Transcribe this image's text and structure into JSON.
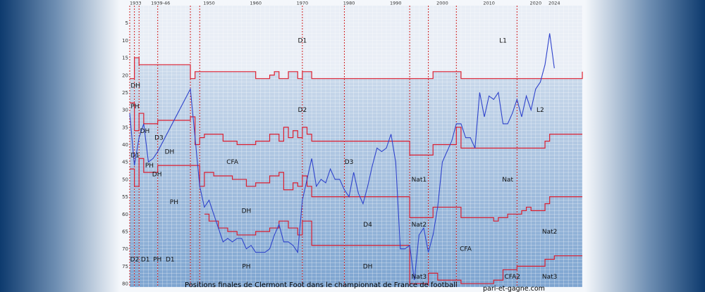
{
  "chart_data": {
    "type": "line",
    "title": "Positions finales de Clermont Foot dans le championnat de France de football",
    "source": "pari-et-gagne.com",
    "x_ticks": [
      "1933",
      "1939-46",
      "1950",
      "1960",
      "1970",
      "1980",
      "1990",
      "2000",
      "2010",
      "2020",
      "2024"
    ],
    "y_ticks": [
      5,
      10,
      15,
      20,
      25,
      30,
      35,
      40,
      45,
      50,
      55,
      60,
      65,
      70,
      75,
      80
    ],
    "ylim": [
      0,
      81
    ],
    "xlim": [
      1933,
      2030
    ],
    "y_inverted": true,
    "grid": true,
    "series": [
      {
        "values": [
          [
            1933,
            31
          ],
          [
            1934,
            46
          ],
          [
            1935,
            38
          ],
          [
            1936,
            34
          ],
          [
            1937,
            45
          ],
          [
            1938,
            44
          ],
          [
            1939,
            42
          ],
          [
            1946,
            24
          ],
          [
            1948,
            52
          ],
          [
            1949,
            58
          ],
          [
            1950,
            56
          ],
          [
            1951,
            60
          ],
          [
            1952,
            64
          ],
          [
            1953,
            68
          ],
          [
            1954,
            67
          ],
          [
            1955,
            68
          ],
          [
            1956,
            67
          ],
          [
            1957,
            67
          ],
          [
            1958,
            70
          ],
          [
            1959,
            69
          ],
          [
            1960,
            71
          ],
          [
            1961,
            71
          ],
          [
            1962,
            71
          ],
          [
            1963,
            70
          ],
          [
            1964,
            66
          ],
          [
            1965,
            63
          ],
          [
            1966,
            68
          ],
          [
            1967,
            68
          ],
          [
            1968,
            69
          ],
          [
            1969,
            71
          ],
          [
            1970,
            56
          ],
          [
            1971,
            50
          ],
          [
            1972,
            44
          ],
          [
            1973,
            52
          ],
          [
            1974,
            50
          ],
          [
            1975,
            51
          ],
          [
            1976,
            47
          ],
          [
            1977,
            50
          ],
          [
            1978,
            50
          ],
          [
            1979,
            53
          ],
          [
            1980,
            55
          ],
          [
            1981,
            48
          ],
          [
            1982,
            54
          ],
          [
            1983,
            57
          ],
          [
            1984,
            52
          ],
          [
            1985,
            46
          ],
          [
            1986,
            41
          ],
          [
            1987,
            42
          ],
          [
            1988,
            41
          ],
          [
            1989,
            37
          ],
          [
            1990,
            45
          ],
          [
            1991,
            70
          ],
          [
            1992,
            70
          ],
          [
            1993,
            69
          ],
          [
            1994,
            79
          ],
          [
            1995,
            66
          ],
          [
            1996,
            64
          ],
          [
            1997,
            71
          ],
          [
            1998,
            66
          ],
          [
            1999,
            58
          ],
          [
            2000,
            45
          ],
          [
            2001,
            42
          ],
          [
            2002,
            39
          ],
          [
            2003,
            34
          ],
          [
            2004,
            34
          ],
          [
            2005,
            38
          ],
          [
            2006,
            38
          ],
          [
            2007,
            41
          ],
          [
            2008,
            25
          ],
          [
            2009,
            32
          ],
          [
            2010,
            26
          ],
          [
            2011,
            27
          ],
          [
            2012,
            25
          ],
          [
            2013,
            34
          ],
          [
            2014,
            34
          ],
          [
            2015,
            31
          ],
          [
            2016,
            27
          ],
          [
            2017,
            32
          ],
          [
            2018,
            26
          ],
          [
            2019,
            30
          ],
          [
            2020,
            24
          ],
          [
            2021,
            22
          ],
          [
            2022,
            17
          ],
          [
            2023,
            8
          ],
          [
            2024,
            18
          ]
        ]
      }
    ],
    "division_boundaries": [
      [
        [
          1933,
          21
        ],
        [
          1934,
          15
        ],
        [
          1935,
          17
        ],
        [
          1939,
          17
        ],
        [
          1946,
          21
        ],
        [
          1947,
          19
        ],
        [
          1960,
          21
        ],
        [
          1963,
          20
        ],
        [
          1964,
          19
        ],
        [
          1965,
          21
        ],
        [
          1967,
          19
        ],
        [
          1969,
          21
        ],
        [
          1970,
          19
        ],
        [
          1972,
          21
        ],
        [
          1998,
          19
        ],
        [
          2004,
          21
        ],
        [
          2030,
          19
        ]
      ],
      [
        [
          1933,
          28
        ],
        [
          1934,
          36
        ],
        [
          1935,
          31
        ],
        [
          1936,
          34
        ],
        [
          1939,
          33
        ],
        [
          1946,
          32
        ],
        [
          1947,
          40
        ],
        [
          1948,
          38
        ],
        [
          1949,
          37
        ],
        [
          1953,
          39
        ],
        [
          1956,
          40
        ],
        [
          1960,
          39
        ],
        [
          1963,
          37
        ],
        [
          1965,
          39
        ],
        [
          1966,
          35
        ],
        [
          1967,
          38
        ],
        [
          1968,
          36
        ],
        [
          1969,
          38
        ],
        [
          1970,
          35
        ],
        [
          1971,
          37
        ],
        [
          1972,
          39
        ],
        [
          1993,
          43
        ],
        [
          1998,
          40
        ],
        [
          2003,
          35
        ],
        [
          2004,
          41
        ],
        [
          2022,
          39
        ],
        [
          2023,
          37
        ],
        [
          2030,
          37
        ]
      ],
      [
        [
          1933,
          47
        ],
        [
          1934,
          52
        ],
        [
          1935,
          44
        ],
        [
          1936,
          48
        ],
        [
          1939,
          46
        ],
        [
          1946,
          46
        ],
        [
          1948,
          52
        ],
        [
          1949,
          48
        ],
        [
          1951,
          49
        ],
        [
          1955,
          50
        ],
        [
          1958,
          52
        ],
        [
          1960,
          51
        ],
        [
          1963,
          49
        ],
        [
          1965,
          48
        ],
        [
          1966,
          53
        ],
        [
          1968,
          51
        ],
        [
          1969,
          52
        ],
        [
          1970,
          49
        ],
        [
          1971,
          52
        ],
        [
          1972,
          55
        ],
        [
          1993,
          61
        ],
        [
          1998,
          58
        ],
        [
          2004,
          61
        ],
        [
          2011,
          62
        ],
        [
          2012,
          61
        ],
        [
          2014,
          60
        ],
        [
          2017,
          59
        ],
        [
          2018,
          58
        ],
        [
          2019,
          59
        ],
        [
          2022,
          57
        ],
        [
          2023,
          55
        ],
        [
          2030,
          55
        ]
      ],
      [
        [
          1949,
          60
        ],
        [
          1950,
          62
        ],
        [
          1952,
          64
        ],
        [
          1954,
          65
        ],
        [
          1956,
          66
        ],
        [
          1960,
          65
        ],
        [
          1963,
          64
        ],
        [
          1965,
          62
        ],
        [
          1967,
          64
        ],
        [
          1969,
          66
        ],
        [
          1970,
          62
        ],
        [
          1972,
          69
        ],
        [
          1993,
          80
        ],
        [
          1997,
          77
        ],
        [
          1999,
          79
        ],
        [
          2004,
          80
        ],
        [
          2011,
          79
        ],
        [
          2013,
          76
        ],
        [
          2016,
          75
        ],
        [
          2022,
          73
        ],
        [
          2024,
          72
        ],
        [
          2030,
          72
        ]
      ]
    ],
    "era_dividers": [
      1933,
      1934,
      1935,
      1939,
      1946,
      1948,
      1970,
      1979,
      1993,
      1997,
      2003,
      2016
    ],
    "division_labels": [
      {
        "text": "D1",
        "x": 1970,
        "y": 10
      },
      {
        "text": "L1",
        "x": 2013,
        "y": 10
      },
      {
        "text": "D2",
        "x": 1970,
        "y": 30
      },
      {
        "text": "L2",
        "x": 2021,
        "y": 30
      },
      {
        "text": "CFA",
        "x": 1955,
        "y": 45
      },
      {
        "text": "D3",
        "x": 1980,
        "y": 45
      },
      {
        "text": "Nat1",
        "x": 1995,
        "y": 50
      },
      {
        "text": "Nat",
        "x": 2014,
        "y": 50
      },
      {
        "text": "DH",
        "x": 1958,
        "y": 59
      },
      {
        "text": "D4",
        "x": 1984,
        "y": 63
      },
      {
        "text": "Nat2",
        "x": 1995,
        "y": 63
      },
      {
        "text": "Nat2",
        "x": 2023,
        "y": 65
      },
      {
        "text": "CFA",
        "x": 2005,
        "y": 70
      },
      {
        "text": "PH",
        "x": 1958,
        "y": 75
      },
      {
        "text": "DH",
        "x": 1984,
        "y": 75
      },
      {
        "text": "Nat3",
        "x": 1995,
        "y": 78
      },
      {
        "text": "CFA2",
        "x": 2015,
        "y": 78
      },
      {
        "text": "Nat3",
        "x": 2023,
        "y": 78
      },
      {
        "text": "DH",
        "x": 1933.2,
        "y": 23
      },
      {
        "text": "PH",
        "x": 1933.2,
        "y": 29
      },
      {
        "text": "DH",
        "x": 1935.2,
        "y": 36
      },
      {
        "text": "D3",
        "x": 1938.3,
        "y": 38
      },
      {
        "text": "D1",
        "x": 1933.2,
        "y": 43
      },
      {
        "text": "PH",
        "x": 1936.3,
        "y": 46
      },
      {
        "text": "DH",
        "x": 1937.8,
        "y": 48.5
      },
      {
        "text": "DH",
        "x": 1940.5,
        "y": 42
      },
      {
        "text": "PH",
        "x": 1942.5,
        "y": 56.5
      },
      {
        "text": "D2",
        "x": 1933.1,
        "y": 73
      },
      {
        "text": "D1",
        "x": 1935.4,
        "y": 73
      },
      {
        "text": "PH",
        "x": 1938,
        "y": 73
      },
      {
        "text": "D1",
        "x": 1940.7,
        "y": 73
      }
    ],
    "colors": {
      "line": "#3044cc",
      "boundary": "#e02030",
      "divider": "#d02020",
      "band_top": "#dfe7f1",
      "band_bottom": "#7fa6d2",
      "grid": "#ffffff"
    }
  }
}
